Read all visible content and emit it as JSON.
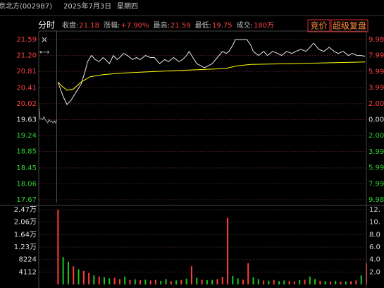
{
  "header": {
    "name": "京北方(002987)",
    "date": "2025年7月3日",
    "weekday": "星期四"
  },
  "info": {
    "mode": "分时",
    "stats": [
      {
        "label": "收盘:",
        "value": "21.18"
      },
      {
        "label": "涨幅:",
        "value": "+7.90%"
      },
      {
        "label": "最高:",
        "value": "21.59"
      },
      {
        "label": "最低:",
        "value": "19.75"
      },
      {
        "label": "成交:",
        "value": "180万"
      }
    ],
    "buttons": [
      "竞价",
      "超级复盘"
    ]
  },
  "chart_data": [
    {
      "type": "line",
      "xlim": [
        -15,
        240
      ],
      "ylim": [
        17.67,
        21.59
      ],
      "yticks": [
        21.59,
        {
          "value": 21.2,
          "label": "21.20"
        },
        20.81,
        20.41,
        20.02,
        19.63,
        19.24,
        18.85,
        18.45,
        18.06,
        17.67
      ],
      "y2lim": [
        -9.98,
        9.98
      ],
      "y2ticks": [
        {
          "value": 9.98,
          "label": "9.98%"
        },
        {
          "value": 7.99,
          "label": "7.99%"
        },
        {
          "value": 5.99,
          "label": "5.99%"
        },
        {
          "value": 3.99,
          "label": "3.99%"
        },
        {
          "value": 2.0,
          "label": "2.00%"
        },
        {
          "value": 0,
          "label": "0.00%"
        },
        {
          "value": -2.0,
          "label": "2.00%"
        },
        {
          "value": -3.99,
          "label": "3.99%"
        },
        {
          "value": -5.99,
          "label": "5.99%"
        },
        {
          "value": -7.99,
          "label": "7.99%"
        },
        {
          "value": -9.98,
          "label": "9.98%"
        }
      ],
      "grid": true,
      "series": [
        {
          "color": "#a0a0a0",
          "x": [
            -15,
            -14,
            -13,
            -12,
            -11,
            -10,
            -9,
            -8,
            -7,
            -6,
            -5,
            -4,
            -3,
            -2,
            -1
          ],
          "values": [
            20.0,
            19.65,
            19.65,
            19.63,
            19.7,
            19.63,
            19.6,
            19.55,
            19.63,
            19.58,
            19.6,
            19.55,
            19.6,
            19.55,
            19.63
          ]
        },
        {
          "color": "#e8e8e8",
          "x": [
            0,
            1,
            4,
            7,
            10,
            12,
            15,
            18,
            21,
            23,
            26,
            29,
            32,
            35,
            37,
            40,
            43,
            46,
            48,
            51,
            54,
            58,
            61,
            64,
            68,
            72,
            75,
            79,
            83,
            86,
            90,
            94,
            97,
            100,
            102,
            105,
            108,
            111,
            114,
            117,
            120,
            124,
            128,
            131,
            133,
            136,
            138,
            142,
            147,
            150,
            152,
            156,
            160,
            163,
            167,
            171,
            174,
            178,
            182,
            185,
            189,
            193,
            196,
            199,
            203,
            207,
            211,
            215,
            218,
            222,
            226,
            229,
            233,
            236,
            239
          ],
          "values": [
            20.55,
            20.45,
            20.2,
            20.0,
            20.1,
            20.2,
            20.35,
            20.5,
            20.8,
            21.05,
            21.2,
            21.1,
            21.05,
            21.15,
            21.1,
            21.0,
            21.2,
            21.1,
            21.15,
            21.25,
            21.2,
            21.1,
            21.15,
            21.1,
            21.2,
            21.15,
            21.15,
            21.0,
            21.1,
            21.05,
            21.15,
            21.05,
            21.1,
            21.2,
            21.3,
            21.15,
            21.0,
            20.95,
            20.9,
            20.95,
            21.0,
            21.15,
            21.3,
            21.25,
            21.3,
            21.45,
            21.59,
            21.59,
            21.59,
            21.45,
            21.3,
            21.2,
            21.3,
            21.2,
            21.3,
            21.25,
            21.2,
            21.3,
            21.25,
            21.3,
            21.35,
            21.3,
            21.4,
            21.5,
            21.35,
            21.3,
            21.4,
            21.3,
            21.25,
            21.3,
            21.2,
            21.25,
            21.2,
            21.2,
            21.18
          ]
        },
        {
          "color": "#ffff00",
          "x": [
            0,
            3,
            7,
            12,
            18,
            25,
            35,
            50,
            70,
            100,
            130,
            140,
            150,
            180,
            210,
            239
          ],
          "values": [
            20.55,
            20.45,
            20.35,
            20.38,
            20.55,
            20.68,
            20.73,
            20.77,
            20.8,
            20.84,
            20.88,
            20.95,
            20.98,
            21.0,
            21.02,
            21.04
          ]
        }
      ]
    },
    {
      "type": "bar",
      "xlim": [
        -15,
        240
      ],
      "ylim": [
        0,
        24672
      ],
      "yticks": [
        {
          "value": 24672,
          "label": "2.47万"
        },
        {
          "value": 20560,
          "label": "2.06万"
        },
        {
          "value": 16448,
          "label": "1.64万"
        },
        {
          "value": 12336,
          "label": "1.23万"
        },
        8224,
        4112
      ],
      "y2lim": [
        0,
        12
      ],
      "y2ticks": [
        {
          "value": 12,
          "label": "12."
        },
        {
          "value": 10,
          "label": "10."
        },
        {
          "value": 8,
          "label": "8.0"
        },
        {
          "value": 6,
          "label": "6.0"
        },
        {
          "value": 4,
          "label": "4.0"
        },
        {
          "value": 2,
          "label": "2.0"
        }
      ],
      "grid": true,
      "x": [
        0,
        4,
        8,
        12,
        16,
        20,
        24,
        28,
        32,
        36,
        40,
        44,
        48,
        52,
        56,
        60,
        64,
        68,
        72,
        76,
        80,
        84,
        88,
        92,
        96,
        100,
        104,
        108,
        112,
        116,
        120,
        124,
        128,
        132,
        136,
        140,
        144,
        148,
        152,
        156,
        160,
        164,
        168,
        172,
        176,
        180,
        184,
        188,
        192,
        196,
        200,
        204,
        208,
        212,
        216,
        220,
        224,
        228,
        232,
        236,
        240
      ],
      "values": [
        24672,
        9000,
        7500,
        6000,
        5000,
        4500,
        3800,
        3000,
        2600,
        2400,
        2000,
        2200,
        1800,
        2600,
        1500,
        1700,
        1400,
        1600,
        1300,
        1500,
        1200,
        1800,
        1100,
        1300,
        1500,
        1900,
        6000,
        2200,
        1600,
        1400,
        1500,
        1800,
        2500,
        22000,
        2800,
        2000,
        1600,
        7000,
        2400,
        1800,
        1300,
        1200,
        1500,
        1100,
        1300,
        1200,
        1000,
        1400,
        1600,
        2600,
        1800,
        1200,
        1100,
        1000,
        1200,
        900,
        1000,
        1100,
        1300,
        3000,
        7000
      ],
      "colors": [
        "#ff3c3c",
        "#19c819",
        "#19c819",
        "#ff3c3c",
        "#19c819",
        "#ff3c3c",
        "#ff3c3c",
        "#19c819",
        "#ff3c3c",
        "#19c819",
        "#19c819",
        "#ff3c3c",
        "#ff3c3c",
        "#19c819",
        "#ff3c3c",
        "#19c819",
        "#ff3c3c",
        "#19c819",
        "#ff3c3c",
        "#ff3c3c",
        "#19c819",
        "#19c819",
        "#ff3c3c",
        "#19c819",
        "#ff3c3c",
        "#19c819",
        "#ff3c3c",
        "#19c819",
        "#ff3c3c",
        "#19c819",
        "#19c819",
        "#ff3c3c",
        "#ff3c3c",
        "#ff3c3c",
        "#19c819",
        "#19c819",
        "#ff3c3c",
        "#ff3c3c",
        "#19c819",
        "#19c819",
        "#ff3c3c",
        "#19c819",
        "#ff3c3c",
        "#19c819",
        "#19c819",
        "#ff3c3c",
        "#ff3c3c",
        "#19c819",
        "#ff3c3c",
        "#19c819",
        "#19c819",
        "#ff3c3c",
        "#19c819",
        "#ff3c3c",
        "#19c819",
        "#ff3c3c",
        "#19c819",
        "#ff3c3c",
        "#ff3c3c",
        "#19c819",
        "#ff3c3c"
      ]
    }
  ]
}
